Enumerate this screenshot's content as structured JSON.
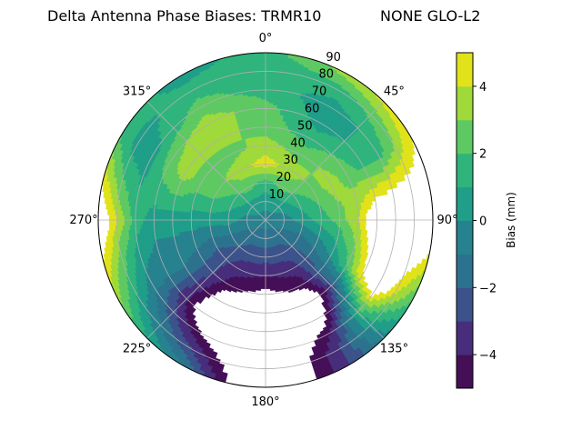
{
  "chart_data": {
    "type": "heatmap",
    "subtype": "polar filled contour",
    "title": "Delta Antenna Phase Biases: TRMR10",
    "title_right": "NONE GLO-L2",
    "angle_ticks": [
      "0°",
      "45°",
      "90°",
      "135°",
      "180°",
      "225°",
      "270°",
      "315°"
    ],
    "radial_ticks": [
      "10",
      "20",
      "30",
      "40",
      "50",
      "60",
      "70",
      "80",
      "90"
    ],
    "radial_range": [
      0,
      90
    ],
    "theta_zero": "top",
    "theta_direction": "clockwise",
    "grid": true,
    "colorbar": {
      "label": "Bias (mm)",
      "range": [
        -5,
        5
      ],
      "levels": [
        -5,
        -4,
        -3,
        -2,
        -1,
        0,
        1,
        2,
        3,
        4,
        5
      ],
      "ticks": [
        "−4",
        "−2",
        "0",
        "2",
        "4"
      ],
      "tick_values": [
        -4,
        -2,
        0,
        2,
        4
      ],
      "colormap": "viridis",
      "colors": [
        "#440f57",
        "#472d7b",
        "#3b528b",
        "#2c728e",
        "#26828e",
        "#1f9e89",
        "#2fb47c",
        "#5ec962",
        "#9fd93a",
        "#e1e21a"
      ]
    },
    "field": {
      "azimuth_deg": [
        0,
        30,
        60,
        90,
        120,
        150,
        180,
        210,
        240,
        270,
        300,
        330
      ],
      "radius": [
        0,
        10,
        20,
        30,
        40,
        50,
        60,
        70,
        80,
        90
      ],
      "values_mm": [
        [
          -0.5,
          0.5,
          1.5,
          4.5,
          3.5,
          2.5,
          2.5,
          1.5,
          1.5,
          1.5
        ],
        [
          -0.5,
          0.5,
          2.5,
          3.5,
          2.5,
          1.5,
          0.5,
          0.5,
          1.5,
          3.5
        ],
        [
          -0.5,
          0.2,
          1.5,
          2.5,
          3.5,
          2.5,
          1.5,
          1.5,
          3,
          5
        ],
        [
          -0.5,
          -0.5,
          0.5,
          1.5,
          2.5,
          4,
          7,
          8,
          8,
          7
        ],
        [
          -0.5,
          -1,
          -1.5,
          -1,
          0,
          2,
          5,
          7,
          4,
          2
        ],
        [
          -0.5,
          -1.5,
          -2.5,
          -3.5,
          -4.5,
          -7,
          -6,
          -4,
          -3,
          -3
        ],
        [
          -0.5,
          -1.5,
          -2.5,
          -4,
          -5.5,
          -8,
          -8,
          -8,
          -8,
          -8
        ],
        [
          -0.5,
          -1.5,
          -2.5,
          -3.5,
          -4.5,
          -6,
          -7,
          -5,
          -3,
          -1
        ],
        [
          -0.5,
          -1,
          -1.5,
          -2,
          -1.5,
          -1,
          -1,
          -0.5,
          1,
          3
        ],
        [
          -0.5,
          -0.5,
          0.5,
          0.5,
          0.5,
          0.5,
          0.5,
          1.5,
          4,
          7
        ],
        [
          -0.5,
          0.5,
          1.5,
          2.5,
          2.5,
          3.5,
          2.5,
          0.5,
          0.5,
          2
        ],
        [
          -0.5,
          0.5,
          2.5,
          3.5,
          2.5,
          3.5,
          3.5,
          2.5,
          1.5,
          0.5
        ]
      ]
    }
  }
}
